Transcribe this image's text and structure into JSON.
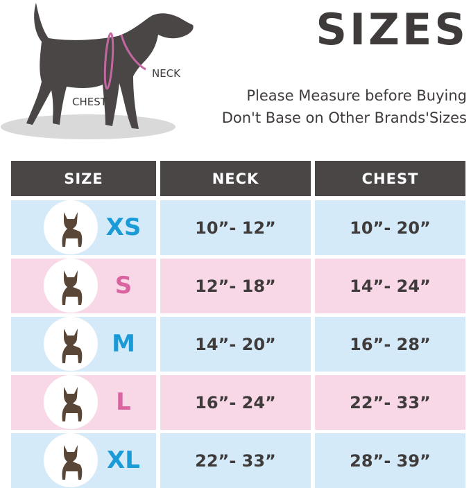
{
  "title": "SIZES",
  "subtitle_lines": [
    "Please Measure before Buying",
    "Don't Base on Other Brands'Sizes"
  ],
  "diagram_labels": {
    "neck": "NECK",
    "chest": "CHEST"
  },
  "colors": {
    "header_bg": "#4a4646",
    "row_blue": "#d5eaf8",
    "row_pink": "#f8d8e7",
    "size_blue": "#1a9ad6",
    "size_pink": "#d9649f",
    "strap": "#c2679f"
  },
  "table": {
    "headers": [
      "SIZE",
      "NECK",
      "CHEST"
    ],
    "rows": [
      {
        "size": "XS",
        "neck": "10”- 12”",
        "chest": "10”- 20”",
        "image": "chihuahua-photo"
      },
      {
        "size": "S",
        "neck": "12”- 18”",
        "chest": "14”- 24”",
        "image": "beagle-photo"
      },
      {
        "size": "M",
        "neck": "14”- 20”",
        "chest": "16”- 28”",
        "image": "shiba-photo"
      },
      {
        "size": "L",
        "neck": "16”- 24”",
        "chest": "22”- 33”",
        "image": "labrador-photo"
      },
      {
        "size": "XL",
        "neck": "22”- 33”",
        "chest": "28”- 39”",
        "image": "great-dane-photo"
      }
    ]
  }
}
